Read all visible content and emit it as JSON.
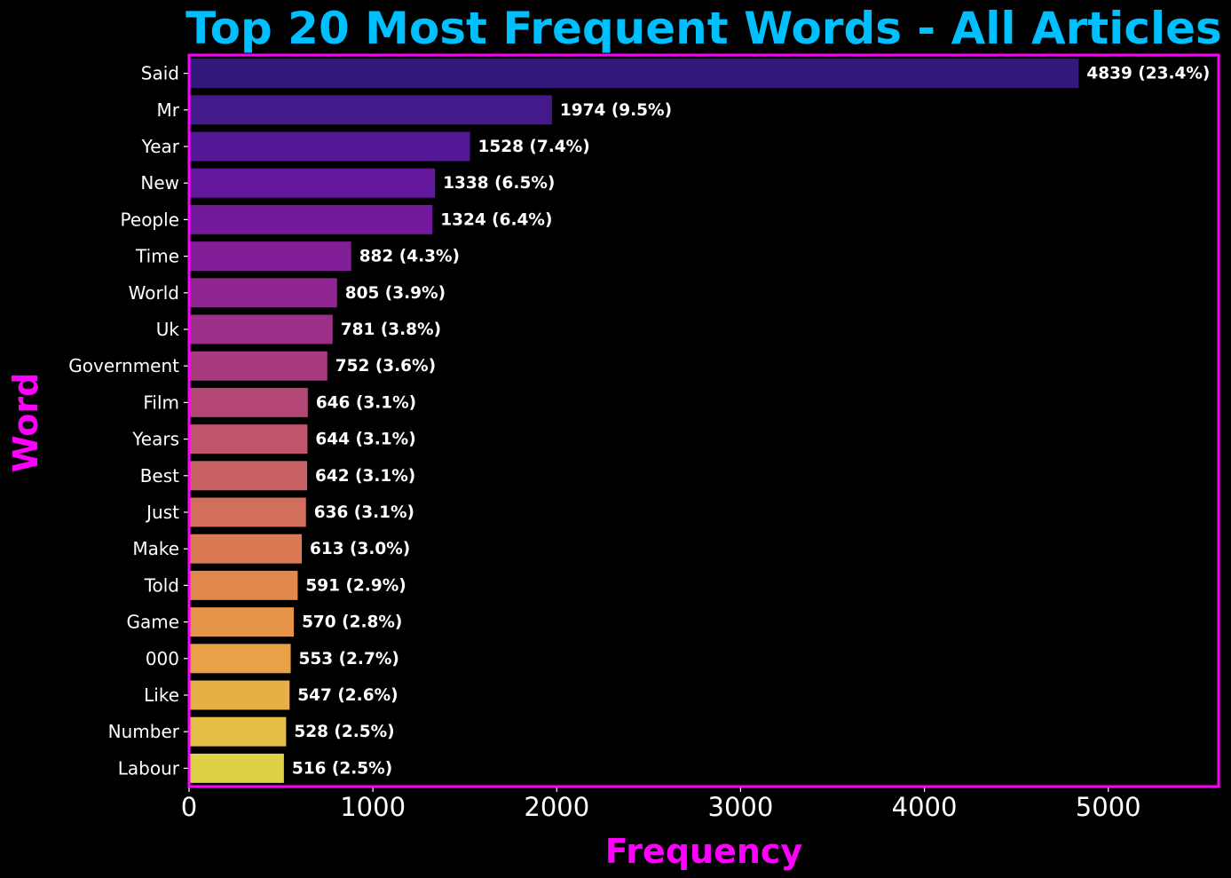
{
  "chart_data": {
    "type": "bar",
    "orientation": "horizontal",
    "title": "Top 20 Most Frequent Words - All Articles",
    "xlabel": "Frequency",
    "ylabel": "Word",
    "xlim": [
      0,
      5600
    ],
    "xticks": [
      0,
      1000,
      2000,
      3000,
      4000,
      5000
    ],
    "grid": false,
    "categories": [
      "Said",
      "Mr",
      "Year",
      "New",
      "People",
      "Time",
      "World",
      "Uk",
      "Government",
      "Film",
      "Years",
      "Best",
      "Just",
      "Make",
      "Told",
      "Game",
      "000",
      "Like",
      "Number",
      "Labour"
    ],
    "values": [
      4839,
      1974,
      1528,
      1338,
      1324,
      882,
      805,
      781,
      752,
      646,
      644,
      642,
      636,
      613,
      591,
      570,
      553,
      547,
      528,
      516
    ],
    "data_labels": [
      "4839 (23.4%)",
      "1974 (9.5%)",
      "1528 (7.4%)",
      "1338 (6.5%)",
      "1324 (6.4%)",
      "882 (4.3%)",
      "805 (3.9%)",
      "781 (3.8%)",
      "752 (3.6%)",
      "646 (3.1%)",
      "644 (3.1%)",
      "642 (3.1%)",
      "636 (3.1%)",
      "613 (3.0%)",
      "591 (2.9%)",
      "570 (2.8%)",
      "553 (2.7%)",
      "547 (2.6%)",
      "528 (2.5%)",
      "516 (2.5%)"
    ],
    "colors": [
      "#33197c",
      "#441a8a",
      "#541896",
      "#64189b",
      "#73199b",
      "#821d98",
      "#902591",
      "#9c2f87",
      "#a83b7e",
      "#b44775",
      "#bf546c",
      "#c86265",
      "#d16e5c",
      "#d97a54",
      "#e1884c",
      "#e59449",
      "#e8a146",
      "#e6b046",
      "#e4be45",
      "#dfd146"
    ],
    "frame_color": "#ff00ff",
    "background": "#000000"
  }
}
